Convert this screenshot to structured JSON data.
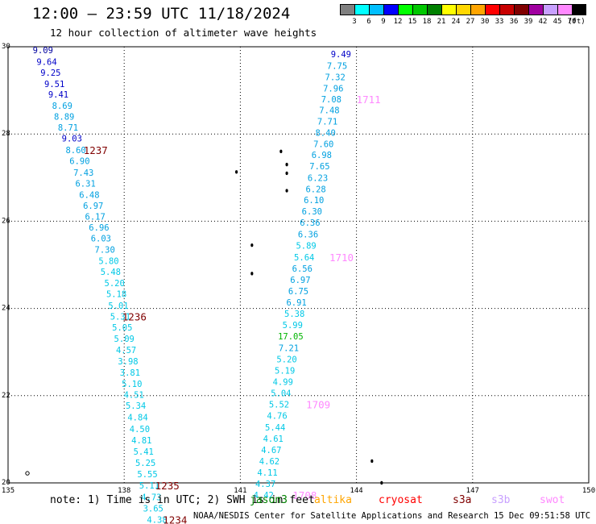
{
  "title": "12:00 – 23:59 UTC 11/18/2024",
  "subtitle": "12 hour collection of altimeter wave heights",
  "legend": {
    "colors": [
      "#808080",
      "#00ffff",
      "#00bfff",
      "#0000ff",
      "#00ff00",
      "#00c800",
      "#008000",
      "#ffff00",
      "#ffd700",
      "#ffa500",
      "#ff0000",
      "#c80000",
      "#800000",
      "#a000a0",
      "#c8a0ff",
      "#ff88ff",
      "#000000"
    ],
    "labels": [
      "3",
      "6",
      "9",
      "12",
      "15",
      "18",
      "21",
      "24",
      "27",
      "30",
      "33",
      "36",
      "39",
      "42",
      "45",
      "70"
    ],
    "unit": "(ft)"
  },
  "axes": {
    "x_ticks": [
      "135",
      "138",
      "141",
      "144",
      "147",
      "150"
    ],
    "y_ticks": [
      "30",
      "28",
      "26",
      "24",
      "22",
      "20"
    ]
  },
  "map_data": {
    "lon_range": [
      135,
      150
    ],
    "lat_range": [
      20,
      30
    ],
    "tracks": [
      {
        "points": [
          {
            "lon": 135.9,
            "lat": 29.93,
            "v": "9.09",
            "c": "#0000a0"
          },
          {
            "lon": 136.0,
            "lat": 29.66,
            "v": "9.64",
            "c": "#0000c8"
          },
          {
            "lon": 136.1,
            "lat": 29.41,
            "v": "9.25",
            "c": "#0000c8"
          },
          {
            "lon": 136.2,
            "lat": 29.15,
            "v": "9.51",
            "c": "#0000c8"
          },
          {
            "lon": 136.3,
            "lat": 28.91,
            "v": "9.41",
            "c": "#0000c8"
          },
          {
            "lon": 136.4,
            "lat": 28.65,
            "v": "8.69",
            "c": "#00a0e0"
          },
          {
            "lon": 136.45,
            "lat": 28.4,
            "v": "8.89",
            "c": "#00a0e0"
          },
          {
            "lon": 136.55,
            "lat": 28.15,
            "v": "8.71",
            "c": "#00a0e0"
          },
          {
            "lon": 136.65,
            "lat": 27.9,
            "v": "9.03",
            "c": "#0000c8"
          },
          {
            "lon": 136.75,
            "lat": 27.63,
            "v": "8.60",
            "c": "#00a0e0"
          },
          {
            "lon": 136.85,
            "lat": 27.38,
            "v": "6.90",
            "c": "#00a0e0"
          },
          {
            "lon": 136.95,
            "lat": 27.12,
            "v": "7.43",
            "c": "#00a0e0"
          },
          {
            "lon": 137.0,
            "lat": 26.87,
            "v": "6.31",
            "c": "#00a0e0"
          },
          {
            "lon": 137.1,
            "lat": 26.61,
            "v": "6.48",
            "c": "#00a0e0"
          },
          {
            "lon": 137.2,
            "lat": 26.36,
            "v": "6.97",
            "c": "#00a0e0"
          },
          {
            "lon": 137.25,
            "lat": 26.11,
            "v": "6.17",
            "c": "#00a0e0"
          },
          {
            "lon": 137.35,
            "lat": 25.86,
            "v": "6.96",
            "c": "#00a0e0"
          },
          {
            "lon": 137.4,
            "lat": 25.61,
            "v": "6.03",
            "c": "#00a0e0"
          },
          {
            "lon": 137.5,
            "lat": 25.35,
            "v": "7.30",
            "c": "#00a0e0"
          },
          {
            "lon": 137.6,
            "lat": 25.09,
            "v": "5.80",
            "c": "#00c8e6"
          },
          {
            "lon": 137.65,
            "lat": 24.84,
            "v": "5.48",
            "c": "#00c8e6"
          },
          {
            "lon": 137.75,
            "lat": 24.58,
            "v": "5.20",
            "c": "#00c8e6"
          },
          {
            "lon": 137.8,
            "lat": 24.33,
            "v": "5.18",
            "c": "#00c8e6"
          },
          {
            "lon": 137.85,
            "lat": 24.07,
            "v": "5.01",
            "c": "#00c8e6"
          },
          {
            "lon": 137.9,
            "lat": 23.82,
            "v": "5.31",
            "c": "#00c8e6"
          },
          {
            "lon": 137.95,
            "lat": 23.57,
            "v": "5.05",
            "c": "#00c8e6"
          },
          {
            "lon": 138.0,
            "lat": 23.31,
            "v": "5.09",
            "c": "#00c8e6"
          },
          {
            "lon": 138.05,
            "lat": 23.05,
            "v": "4.57",
            "c": "#00c8e6"
          },
          {
            "lon": 138.1,
            "lat": 22.79,
            "v": "3.98",
            "c": "#00c8e6"
          },
          {
            "lon": 138.15,
            "lat": 22.53,
            "v": "3.81",
            "c": "#00c8e6"
          },
          {
            "lon": 138.2,
            "lat": 22.27,
            "v": "5.10",
            "c": "#00c8e6"
          },
          {
            "lon": 138.25,
            "lat": 22.02,
            "v": "4.51",
            "c": "#00c8e6"
          },
          {
            "lon": 138.3,
            "lat": 21.77,
            "v": "5.34",
            "c": "#00c8e6"
          },
          {
            "lon": 138.35,
            "lat": 21.51,
            "v": "4.84",
            "c": "#00c8e6"
          },
          {
            "lon": 138.4,
            "lat": 21.24,
            "v": "4.50",
            "c": "#00c8e6"
          },
          {
            "lon": 138.45,
            "lat": 20.98,
            "v": "4.81",
            "c": "#00c8e6"
          },
          {
            "lon": 138.5,
            "lat": 20.72,
            "v": "5.41",
            "c": "#00c8e6"
          },
          {
            "lon": 138.55,
            "lat": 20.46,
            "v": "5.25",
            "c": "#00c8e6"
          },
          {
            "lon": 138.6,
            "lat": 20.2,
            "v": "5.55",
            "c": "#00c8e6"
          },
          {
            "lon": 138.65,
            "lat": 19.94,
            "v": "5.11",
            "c": "#00c8e6"
          },
          {
            "lon": 138.7,
            "lat": 19.68,
            "v": "4.73",
            "c": "#00c8e6"
          },
          {
            "lon": 138.75,
            "lat": 19.42,
            "v": "3.65",
            "c": "#00c8e6"
          },
          {
            "lon": 138.85,
            "lat": 19.16,
            "v": "4.38",
            "c": "#00c8e6"
          }
        ]
      },
      {
        "points": [
          {
            "lon": 143.6,
            "lat": 29.83,
            "v": "9.49",
            "c": "#0000c8"
          },
          {
            "lon": 143.5,
            "lat": 29.57,
            "v": "7.75",
            "c": "#00a0e0"
          },
          {
            "lon": 143.45,
            "lat": 29.31,
            "v": "7.32",
            "c": "#00a0e0"
          },
          {
            "lon": 143.4,
            "lat": 29.05,
            "v": "7.96",
            "c": "#00a0e0"
          },
          {
            "lon": 143.35,
            "lat": 28.8,
            "v": "7.08",
            "c": "#00a0e0"
          },
          {
            "lon": 143.3,
            "lat": 28.55,
            "v": "7.48",
            "c": "#00a0e0"
          },
          {
            "lon": 143.25,
            "lat": 28.29,
            "v": "7.71",
            "c": "#00a0e0"
          },
          {
            "lon": 143.2,
            "lat": 28.03,
            "v": "8.40",
            "c": "#00a0e0"
          },
          {
            "lon": 143.15,
            "lat": 27.77,
            "v": "7.60",
            "c": "#00a0e0"
          },
          {
            "lon": 143.1,
            "lat": 27.52,
            "v": "6.98",
            "c": "#00a0e0"
          },
          {
            "lon": 143.05,
            "lat": 27.26,
            "v": "7.65",
            "c": "#00a0e0"
          },
          {
            "lon": 143.0,
            "lat": 27.0,
            "v": "6.23",
            "c": "#00a0e0"
          },
          {
            "lon": 142.95,
            "lat": 26.74,
            "v": "6.28",
            "c": "#00a0e0"
          },
          {
            "lon": 142.9,
            "lat": 26.49,
            "v": "6.10",
            "c": "#00a0e0"
          },
          {
            "lon": 142.85,
            "lat": 26.23,
            "v": "6.30",
            "c": "#00a0e0"
          },
          {
            "lon": 142.8,
            "lat": 25.97,
            "v": "6.36",
            "c": "#00a0e0"
          },
          {
            "lon": 142.75,
            "lat": 25.7,
            "v": "6.36",
            "c": "#00a0e0"
          },
          {
            "lon": 142.7,
            "lat": 25.44,
            "v": "5.89",
            "c": "#00c8e6"
          },
          {
            "lon": 142.65,
            "lat": 25.18,
            "v": "5.64",
            "c": "#00c8e6"
          },
          {
            "lon": 142.6,
            "lat": 24.92,
            "v": "6.56",
            "c": "#00a0e0"
          },
          {
            "lon": 142.55,
            "lat": 24.66,
            "v": "6.97",
            "c": "#00a0e0"
          },
          {
            "lon": 142.5,
            "lat": 24.4,
            "v": "6.75",
            "c": "#00a0e0"
          },
          {
            "lon": 142.45,
            "lat": 24.14,
            "v": "6.91",
            "c": "#00a0e0"
          },
          {
            "lon": 142.4,
            "lat": 23.88,
            "v": "5.38",
            "c": "#00c8e6"
          },
          {
            "lon": 142.35,
            "lat": 23.62,
            "v": "5.99",
            "c": "#00c8e6"
          },
          {
            "lon": 142.3,
            "lat": 23.36,
            "v": "17.05",
            "c": "#00b400"
          },
          {
            "lon": 142.25,
            "lat": 23.1,
            "v": "7.21",
            "c": "#00a0e0"
          },
          {
            "lon": 142.2,
            "lat": 22.84,
            "v": "5.20",
            "c": "#00c8e6"
          },
          {
            "lon": 142.15,
            "lat": 22.58,
            "v": "5.19",
            "c": "#00c8e6"
          },
          {
            "lon": 142.1,
            "lat": 22.32,
            "v": "4.99",
            "c": "#00c8e6"
          },
          {
            "lon": 142.05,
            "lat": 22.06,
            "v": "5.04",
            "c": "#00c8e6"
          },
          {
            "lon": 142.0,
            "lat": 21.8,
            "v": "5.52",
            "c": "#00c8e6"
          },
          {
            "lon": 141.95,
            "lat": 21.54,
            "v": "4.76",
            "c": "#00c8e6"
          },
          {
            "lon": 141.9,
            "lat": 21.28,
            "v": "5.44",
            "c": "#00c8e6"
          },
          {
            "lon": 141.85,
            "lat": 21.02,
            "v": "4.61",
            "c": "#00c8e6"
          },
          {
            "lon": 141.8,
            "lat": 20.76,
            "v": "4.67",
            "c": "#00c8e6"
          },
          {
            "lon": 141.75,
            "lat": 20.5,
            "v": "4.62",
            "c": "#00c8e6"
          },
          {
            "lon": 141.7,
            "lat": 20.24,
            "v": "4.11",
            "c": "#00c8e6"
          },
          {
            "lon": 141.65,
            "lat": 19.98,
            "v": "4.37",
            "c": "#00c8e6"
          },
          {
            "lon": 141.6,
            "lat": 19.72,
            "v": "4.42",
            "c": "#00c8e6"
          }
        ]
      }
    ],
    "time_labels": [
      {
        "lon": 136.95,
        "lat": 27.63,
        "text": "1237",
        "c": "#800000"
      },
      {
        "lon": 137.95,
        "lat": 23.82,
        "text": "1236",
        "c": "#800000"
      },
      {
        "lon": 138.8,
        "lat": 19.94,
        "text": "1235",
        "c": "#800000"
      },
      {
        "lon": 139.0,
        "lat": 19.16,
        "text": "1234",
        "c": "#800000"
      },
      {
        "lon": 144.0,
        "lat": 28.8,
        "text": "1711",
        "c": "#ff88ff"
      },
      {
        "lon": 143.3,
        "lat": 25.18,
        "text": "1710",
        "c": "#ff88ff"
      },
      {
        "lon": 142.7,
        "lat": 21.8,
        "text": "1709",
        "c": "#ff88ff"
      },
      {
        "lon": 142.35,
        "lat": 19.72,
        "text": "1708",
        "c": "#ff88ff"
      }
    ],
    "islands": [
      {
        "lon": 135.5,
        "lat": 20.22
      },
      {
        "lon": 140.9,
        "lat": 27.13
      },
      {
        "lon": 142.05,
        "lat": 27.6
      },
      {
        "lon": 142.2,
        "lat": 27.3
      },
      {
        "lon": 142.2,
        "lat": 27.1
      },
      {
        "lon": 142.2,
        "lat": 26.7
      },
      {
        "lon": 141.3,
        "lat": 25.45
      },
      {
        "lon": 141.3,
        "lat": 24.8
      },
      {
        "lon": 144.4,
        "lat": 20.5
      },
      {
        "lon": 144.65,
        "lat": 20.0
      }
    ]
  },
  "note": "note: 1) Time is in UTC; 2) SWH is in feet",
  "missions": [
    {
      "name": "jason3",
      "color": "#008000"
    },
    {
      "name": "altika",
      "color": "#ffa500"
    },
    {
      "name": "cryosat",
      "color": "#ff0000"
    },
    {
      "name": "s3a",
      "color": "#800000"
    },
    {
      "name": "s3b",
      "color": "#c8a0ff"
    },
    {
      "name": "swot",
      "color": "#ff88ff"
    }
  ],
  "credit": "NOAA/NESDIS Center for Satellite Applications and Research   15 Dec 09:51:58 UTC 2024"
}
